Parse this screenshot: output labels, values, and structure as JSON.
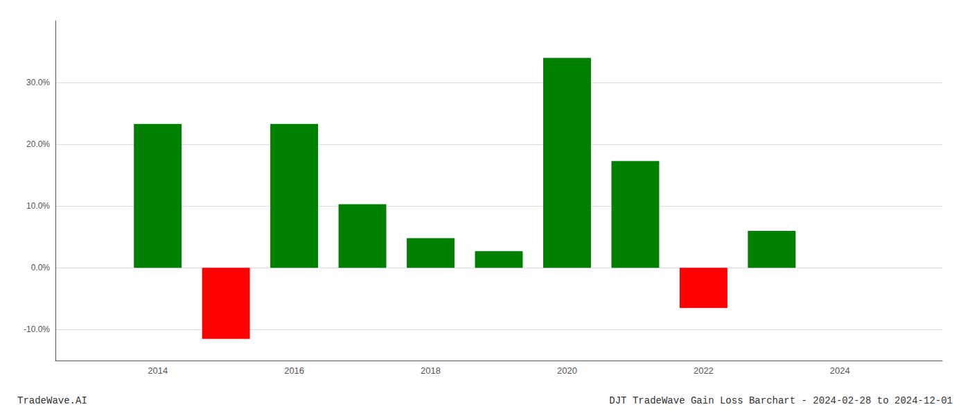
{
  "chart_data": {
    "type": "bar",
    "title": "DJT TradeWave Gain Loss Barchart - 2024-02-28 to 2024-12-01",
    "annotations": [
      "TradeWave.AI"
    ],
    "x": [
      2014,
      2015,
      2016,
      2017,
      2018,
      2019,
      2020,
      2021,
      2022,
      2023
    ],
    "values": [
      0.233,
      -0.115,
      0.233,
      0.103,
      0.048,
      0.027,
      0.34,
      0.173,
      -0.065,
      0.06
    ],
    "colors": [
      "#008000",
      "#ff0000",
      "#008000",
      "#008000",
      "#008000",
      "#008000",
      "#008000",
      "#008000",
      "#ff0000",
      "#008000"
    ],
    "xlim": [
      2012.5,
      2025.5
    ],
    "xticks": [
      2014,
      2016,
      2018,
      2020,
      2022,
      2024
    ],
    "ylim": [
      -0.15,
      0.4
    ],
    "yticks": [
      {
        "value": -0.1,
        "label": "-10.0%"
      },
      {
        "value": 0.0,
        "label": "0.0%"
      },
      {
        "value": 0.1,
        "label": "10.0%"
      },
      {
        "value": 0.2,
        "label": "20.0%"
      },
      {
        "value": 0.3,
        "label": "30.0%"
      }
    ],
    "grid": true
  }
}
